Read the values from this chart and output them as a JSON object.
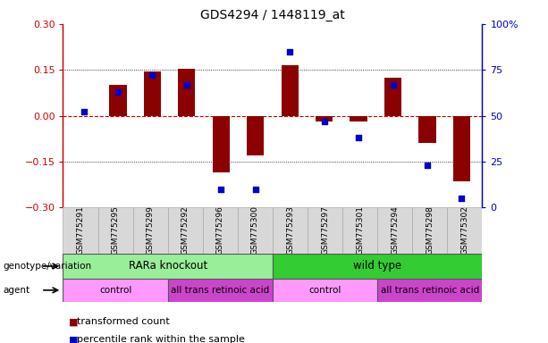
{
  "title": "GDS4294 / 1448119_at",
  "samples": [
    "GSM775291",
    "GSM775295",
    "GSM775299",
    "GSM775292",
    "GSM775296",
    "GSM775300",
    "GSM775293",
    "GSM775297",
    "GSM775301",
    "GSM775294",
    "GSM775298",
    "GSM775302"
  ],
  "bar_values": [
    0.0,
    0.1,
    0.145,
    0.155,
    -0.185,
    -0.13,
    0.165,
    -0.02,
    -0.02,
    0.125,
    -0.09,
    -0.215
  ],
  "dot_values": [
    52,
    63,
    72,
    67,
    10,
    10,
    85,
    47,
    38,
    67,
    23,
    5
  ],
  "bar_color": "#8B0000",
  "dot_color": "#0000CC",
  "ylim_left": [
    -0.3,
    0.3
  ],
  "ylim_right": [
    0,
    100
  ],
  "yticks_left": [
    -0.3,
    -0.15,
    0.0,
    0.15,
    0.3
  ],
  "yticks_right": [
    0,
    25,
    50,
    75,
    100
  ],
  "hline_color": "#cc0000",
  "genotype_groups": [
    {
      "label": "RARa knockout",
      "start": 0,
      "end": 6,
      "color": "#99EE99"
    },
    {
      "label": "wild type",
      "start": 6,
      "end": 12,
      "color": "#33CC33"
    }
  ],
  "agent_groups": [
    {
      "label": "control",
      "start": 0,
      "end": 3,
      "color": "#FF99FF"
    },
    {
      "label": "all trans retinoic acid",
      "start": 3,
      "end": 6,
      "color": "#CC44CC"
    },
    {
      "label": "control",
      "start": 6,
      "end": 9,
      "color": "#FF99FF"
    },
    {
      "label": "all trans retinoic acid",
      "start": 9,
      "end": 12,
      "color": "#CC44CC"
    }
  ],
  "legend_items": [
    {
      "label": "transformed count",
      "color": "#8B0000"
    },
    {
      "label": "percentile rank within the sample",
      "color": "#0000CC"
    }
  ],
  "genotype_label": "genotype/variation",
  "agent_label": "agent",
  "bar_width": 0.5
}
